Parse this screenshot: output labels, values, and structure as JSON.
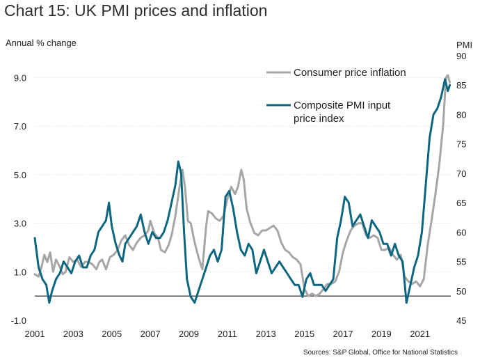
{
  "chart_data": {
    "type": "line",
    "title": "Chart 15: UK PMI prices and inflation",
    "ylabel_left": "Annual % change",
    "ylabel_right": "PMI",
    "source": "Sources: S&P Global, Office for National Statistics",
    "x_range": [
      2001.0,
      2022.6
    ],
    "x_ticks": [
      2001,
      2003,
      2005,
      2007,
      2009,
      2011,
      2013,
      2015,
      2017,
      2019,
      2021
    ],
    "y_left": {
      "range": [
        -1.0,
        9.9
      ],
      "ticks": [
        "-1.0",
        "1.0",
        "3.0",
        "5.0",
        "7.0",
        "9.0"
      ]
    },
    "y_right": {
      "range": [
        45,
        90
      ],
      "ticks": [
        "45",
        "50",
        "55",
        "60",
        "65",
        "70",
        "75",
        "80",
        "85",
        "90"
      ]
    },
    "grid": true,
    "legend_position": "top-right",
    "series": [
      {
        "name": "Consumer price inflation",
        "axis": "left",
        "color": "#a6a6a6",
        "points": [
          [
            2001.0,
            0.9
          ],
          [
            2001.2,
            0.8
          ],
          [
            2001.35,
            1.2
          ],
          [
            2001.5,
            1.7
          ],
          [
            2001.65,
            1.4
          ],
          [
            2001.8,
            1.8
          ],
          [
            2001.95,
            1.0
          ],
          [
            2002.1,
            1.5
          ],
          [
            2002.3,
            1.2
          ],
          [
            2002.45,
            0.9
          ],
          [
            2002.6,
            1.0
          ],
          [
            2002.8,
            1.6
          ],
          [
            2003.0,
            1.4
          ],
          [
            2003.2,
            1.5
          ],
          [
            2003.4,
            1.2
          ],
          [
            2003.6,
            1.4
          ],
          [
            2003.8,
            1.4
          ],
          [
            2004.0,
            1.3
          ],
          [
            2004.2,
            1.1
          ],
          [
            2004.35,
            1.4
          ],
          [
            2004.5,
            1.5
          ],
          [
            2004.7,
            1.1
          ],
          [
            2004.9,
            1.6
          ],
          [
            2005.1,
            1.7
          ],
          [
            2005.3,
            1.9
          ],
          [
            2005.5,
            2.3
          ],
          [
            2005.7,
            2.5
          ],
          [
            2005.9,
            2.1
          ],
          [
            2006.1,
            1.9
          ],
          [
            2006.3,
            2.2
          ],
          [
            2006.5,
            2.4
          ],
          [
            2006.7,
            2.5
          ],
          [
            2006.9,
            2.7
          ],
          [
            2007.0,
            3.1
          ],
          [
            2007.2,
            2.6
          ],
          [
            2007.4,
            2.4
          ],
          [
            2007.55,
            1.9
          ],
          [
            2007.75,
            1.8
          ],
          [
            2007.95,
            2.1
          ],
          [
            2008.1,
            2.5
          ],
          [
            2008.3,
            3.3
          ],
          [
            2008.5,
            4.4
          ],
          [
            2008.67,
            5.2
          ],
          [
            2008.8,
            4.5
          ],
          [
            2008.95,
            3.1
          ],
          [
            2009.1,
            3.0
          ],
          [
            2009.3,
            2.2
          ],
          [
            2009.5,
            1.6
          ],
          [
            2009.7,
            1.1
          ],
          [
            2009.9,
            2.9
          ],
          [
            2010.0,
            3.5
          ],
          [
            2010.2,
            3.4
          ],
          [
            2010.4,
            3.2
          ],
          [
            2010.6,
            3.1
          ],
          [
            2010.8,
            3.3
          ],
          [
            2011.0,
            4.0
          ],
          [
            2011.2,
            4.5
          ],
          [
            2011.4,
            4.2
          ],
          [
            2011.55,
            4.5
          ],
          [
            2011.72,
            5.2
          ],
          [
            2011.85,
            4.8
          ],
          [
            2012.0,
            3.6
          ],
          [
            2012.2,
            3.0
          ],
          [
            2012.4,
            2.6
          ],
          [
            2012.6,
            2.5
          ],
          [
            2012.8,
            2.7
          ],
          [
            2013.0,
            2.7
          ],
          [
            2013.2,
            2.8
          ],
          [
            2013.4,
            2.9
          ],
          [
            2013.6,
            2.7
          ],
          [
            2013.8,
            2.2
          ],
          [
            2014.0,
            1.9
          ],
          [
            2014.2,
            1.8
          ],
          [
            2014.4,
            1.6
          ],
          [
            2014.6,
            1.5
          ],
          [
            2014.8,
            1.3
          ],
          [
            2015.0,
            0.3
          ],
          [
            2015.2,
            0.0
          ],
          [
            2015.4,
            0.1
          ],
          [
            2015.6,
            0.0
          ],
          [
            2015.8,
            0.1
          ],
          [
            2016.0,
            0.3
          ],
          [
            2016.2,
            0.5
          ],
          [
            2016.4,
            0.5
          ],
          [
            2016.6,
            0.6
          ],
          [
            2016.8,
            1.0
          ],
          [
            2017.0,
            1.8
          ],
          [
            2017.2,
            2.3
          ],
          [
            2017.4,
            2.7
          ],
          [
            2017.6,
            2.9
          ],
          [
            2017.8,
            3.0
          ],
          [
            2018.0,
            3.0
          ],
          [
            2018.2,
            2.5
          ],
          [
            2018.4,
            2.4
          ],
          [
            2018.6,
            2.5
          ],
          [
            2018.8,
            2.4
          ],
          [
            2019.0,
            1.9
          ],
          [
            2019.2,
            1.9
          ],
          [
            2019.4,
            2.0
          ],
          [
            2019.6,
            1.7
          ],
          [
            2019.8,
            1.5
          ],
          [
            2020.0,
            1.7
          ],
          [
            2020.2,
            0.8
          ],
          [
            2020.4,
            0.6
          ],
          [
            2020.6,
            0.5
          ],
          [
            2020.8,
            0.6
          ],
          [
            2021.0,
            0.4
          ],
          [
            2021.2,
            0.7
          ],
          [
            2021.4,
            2.1
          ],
          [
            2021.6,
            3.1
          ],
          [
            2021.8,
            4.2
          ],
          [
            2022.0,
            5.4
          ],
          [
            2022.2,
            7.0
          ],
          [
            2022.35,
            9.0
          ],
          [
            2022.45,
            9.1
          ],
          [
            2022.55,
            8.8
          ]
        ]
      },
      {
        "name": "Composite PMI input price index",
        "axis": "right",
        "color": "#0c6680",
        "points": [
          [
            2001.0,
            59
          ],
          [
            2001.2,
            54
          ],
          [
            2001.4,
            52
          ],
          [
            2001.6,
            51
          ],
          [
            2001.75,
            48
          ],
          [
            2001.9,
            50
          ],
          [
            2002.1,
            52
          ],
          [
            2002.3,
            53
          ],
          [
            2002.5,
            55
          ],
          [
            2002.7,
            54
          ],
          [
            2002.9,
            53
          ],
          [
            2003.1,
            55
          ],
          [
            2003.3,
            56
          ],
          [
            2003.5,
            54
          ],
          [
            2003.7,
            54
          ],
          [
            2003.9,
            56
          ],
          [
            2004.1,
            57
          ],
          [
            2004.3,
            60
          ],
          [
            2004.5,
            61
          ],
          [
            2004.7,
            62
          ],
          [
            2004.85,
            65
          ],
          [
            2005.0,
            61
          ],
          [
            2005.2,
            58
          ],
          [
            2005.4,
            56
          ],
          [
            2005.55,
            55
          ],
          [
            2005.7,
            58
          ],
          [
            2005.9,
            59
          ],
          [
            2006.1,
            60
          ],
          [
            2006.3,
            61
          ],
          [
            2006.5,
            63
          ],
          [
            2006.7,
            60
          ],
          [
            2006.9,
            58
          ],
          [
            2007.1,
            60
          ],
          [
            2007.3,
            59
          ],
          [
            2007.5,
            59
          ],
          [
            2007.7,
            60
          ],
          [
            2007.9,
            62
          ],
          [
            2008.1,
            65
          ],
          [
            2008.3,
            68
          ],
          [
            2008.45,
            72
          ],
          [
            2008.6,
            70
          ],
          [
            2008.75,
            60
          ],
          [
            2008.9,
            52
          ],
          [
            2009.1,
            49
          ],
          [
            2009.3,
            48
          ],
          [
            2009.5,
            50
          ],
          [
            2009.7,
            52
          ],
          [
            2009.9,
            54
          ],
          [
            2010.1,
            56
          ],
          [
            2010.3,
            57
          ],
          [
            2010.5,
            55
          ],
          [
            2010.7,
            57
          ],
          [
            2010.9,
            66
          ],
          [
            2011.1,
            67
          ],
          [
            2011.3,
            64
          ],
          [
            2011.5,
            60
          ],
          [
            2011.7,
            57
          ],
          [
            2011.9,
            56
          ],
          [
            2012.1,
            58
          ],
          [
            2012.3,
            57
          ],
          [
            2012.5,
            53
          ],
          [
            2012.7,
            55
          ],
          [
            2012.9,
            57
          ],
          [
            2013.1,
            55
          ],
          [
            2013.3,
            53
          ],
          [
            2013.5,
            54
          ],
          [
            2013.7,
            55
          ],
          [
            2013.9,
            54
          ],
          [
            2014.1,
            53
          ],
          [
            2014.3,
            52
          ],
          [
            2014.5,
            51
          ],
          [
            2014.7,
            51
          ],
          [
            2014.9,
            49
          ],
          [
            2015.1,
            52
          ],
          [
            2015.3,
            53
          ],
          [
            2015.5,
            51
          ],
          [
            2015.7,
            51
          ],
          [
            2015.9,
            51
          ],
          [
            2016.1,
            50
          ],
          [
            2016.3,
            51
          ],
          [
            2016.5,
            52
          ],
          [
            2016.7,
            59
          ],
          [
            2016.9,
            62
          ],
          [
            2017.1,
            66
          ],
          [
            2017.3,
            65
          ],
          [
            2017.5,
            61
          ],
          [
            2017.7,
            62
          ],
          [
            2017.9,
            63
          ],
          [
            2018.1,
            61
          ],
          [
            2018.3,
            59
          ],
          [
            2018.5,
            62
          ],
          [
            2018.7,
            61
          ],
          [
            2018.9,
            60
          ],
          [
            2019.1,
            58
          ],
          [
            2019.3,
            58
          ],
          [
            2019.5,
            56
          ],
          [
            2019.7,
            58
          ],
          [
            2019.9,
            56
          ],
          [
            2020.1,
            55
          ],
          [
            2020.3,
            48
          ],
          [
            2020.5,
            51
          ],
          [
            2020.7,
            54
          ],
          [
            2020.9,
            56
          ],
          [
            2021.1,
            60
          ],
          [
            2021.3,
            68
          ],
          [
            2021.5,
            76
          ],
          [
            2021.7,
            80
          ],
          [
            2021.9,
            81
          ],
          [
            2022.1,
            83
          ],
          [
            2022.3,
            86
          ],
          [
            2022.45,
            84
          ],
          [
            2022.55,
            85
          ]
        ]
      }
    ]
  }
}
